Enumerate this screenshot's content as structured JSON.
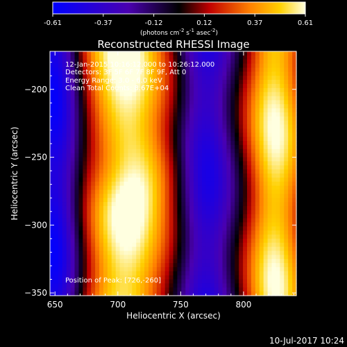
{
  "chart_data": {
    "type": "heatmap",
    "title": "Reconstructed RHESSI Image",
    "xlabel": "Heliocentric X (arcsec)",
    "ylabel": "Heliocentric Y (arcsec)",
    "xlim": [
      646,
      842
    ],
    "ylim": [
      -352,
      -172
    ],
    "xticks": [
      650,
      700,
      750,
      800
    ],
    "yticks": [
      -200,
      -250,
      -300,
      -350
    ],
    "colorbar": {
      "min": -0.61,
      "max": 0.61,
      "ticks": [
        "-0.61",
        "-0.37",
        "-0.12",
        "0.12",
        "0.37",
        "0.61"
      ],
      "unit_main": "(photons cm",
      "unit_sup1": "-2",
      "unit_mid": " s",
      "unit_sup2": "-1",
      "unit_end": " asec",
      "unit_sup3": "-2",
      "unit_close": ")"
    },
    "annotations": {
      "time_range": "12-Jan-2015 10:16:12.000 to 10:26:12.000",
      "detectors": "Detectors: 3F 5F 6F 7F 8F 9F, Att 0",
      "energy": "Energy Range: 3.0 - 6.0 keV",
      "clean": "Clean    Total Counts: 8.67E+04",
      "position": "Position of Peak: [726,-260]"
    },
    "peak": {
      "x": 726,
      "y": -260
    },
    "bands": [
      {
        "center_x": 650,
        "amp": -0.55,
        "width": 14
      },
      {
        "center_x": 705,
        "amp": 0.61,
        "width": 24
      },
      {
        "center_x": 770,
        "amp": -0.45,
        "width": 16
      },
      {
        "center_x": 825,
        "amp": 0.55,
        "width": 16
      }
    ],
    "datestamp": "10-Jul-2017 10:24"
  }
}
